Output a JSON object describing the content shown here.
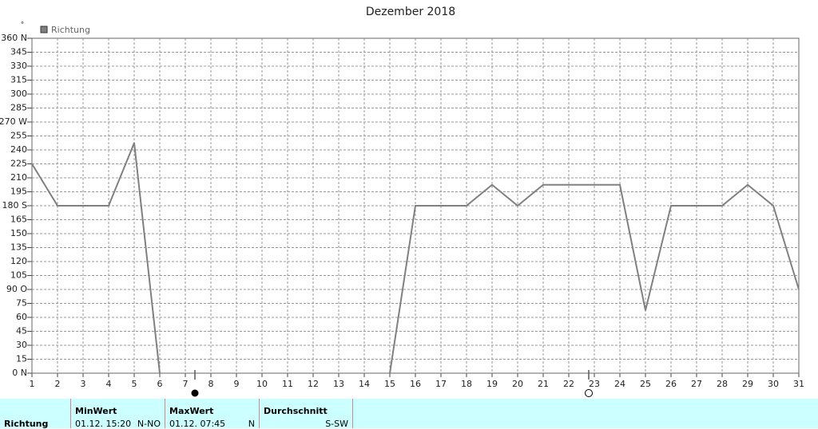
{
  "chart_data": {
    "type": "line",
    "title": "Dezember 2018",
    "y_unit": "°",
    "x": [
      1,
      2,
      3,
      4,
      5,
      6,
      7,
      8,
      9,
      10,
      11,
      12,
      13,
      14,
      15,
      16,
      17,
      18,
      19,
      20,
      21,
      22,
      23,
      24,
      25,
      26,
      27,
      28,
      29,
      30,
      31
    ],
    "xlim": [
      1,
      31
    ],
    "xticks": [
      1,
      2,
      3,
      4,
      5,
      6,
      7,
      8,
      9,
      10,
      11,
      12,
      13,
      14,
      15,
      16,
      17,
      18,
      19,
      20,
      21,
      22,
      23,
      24,
      25,
      26,
      27,
      28,
      29,
      30,
      31
    ],
    "ylim": [
      0,
      360
    ],
    "yticks": [
      {
        "value": 0,
        "label": "0 N"
      },
      15,
      30,
      45,
      60,
      75,
      {
        "value": 90,
        "label": "90 O"
      },
      105,
      120,
      135,
      150,
      165,
      {
        "value": 180,
        "label": "180 S"
      },
      195,
      210,
      225,
      240,
      255,
      {
        "value": 270,
        "label": "270 W"
      },
      285,
      300,
      315,
      330,
      345,
      {
        "value": 360,
        "label": "360 N"
      }
    ],
    "grid": true,
    "legend": "top-left",
    "series": [
      {
        "name": "Richtung",
        "color": "#808080",
        "values": [
          225,
          180,
          180,
          180,
          247.5,
          0,
          null,
          null,
          null,
          null,
          null,
          null,
          null,
          null,
          0,
          180,
          180,
          180,
          202.5,
          180,
          202.5,
          202.5,
          202.5,
          202.5,
          67.5,
          180,
          180,
          180,
          202.5,
          180,
          90
        ]
      }
    ]
  },
  "table": {
    "row_label": "Richtung",
    "columns": [
      {
        "header": "MinWert",
        "date": "01.12.  15:20",
        "value": "N-NO"
      },
      {
        "header": "MaxWert",
        "date": "01.12.  07:45",
        "value": "N"
      },
      {
        "header": "Durchschnitt",
        "value": "S-SW"
      }
    ]
  }
}
